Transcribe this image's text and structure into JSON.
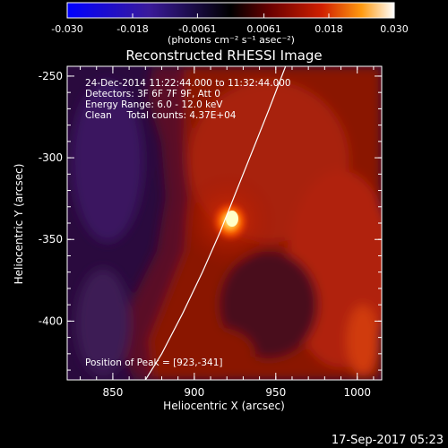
{
  "colorbar": {
    "tick_labels": [
      "-0.030",
      "-0.018",
      "-0.0061",
      "0.0061",
      "0.018",
      "0.030"
    ],
    "tick_values": [
      -0.03,
      -0.018,
      -0.0061,
      0.0061,
      0.018,
      0.03
    ],
    "range": [
      -0.03,
      0.03
    ],
    "units_label": "(photons cm⁻² s⁻¹ asec⁻²)"
  },
  "plot": {
    "title": "Reconstructed RHESSI Image",
    "xlabel": "Heliocentric X (arcsec)",
    "ylabel": "Heliocentric Y (arcsec)",
    "x_ticks": [
      "850",
      "900",
      "950",
      "1000"
    ],
    "x_tick_values": [
      850,
      900,
      950,
      1000
    ],
    "y_ticks": [
      "-250",
      "-300",
      "-350",
      "-400"
    ],
    "y_tick_values": [
      -250,
      -300,
      -350,
      -400
    ],
    "xlim": [
      822,
      1015
    ],
    "ylim": [
      -436,
      -244
    ]
  },
  "annotations": {
    "line1": "24-Dec-2014 11:22:44.000 to 11:32:44.000",
    "line2": "Detectors: 3F 6F 7F 9F, Att 0",
    "line3": "Energy Range: 6.0 - 12.0 keV",
    "line4": "Clean     Total counts: 4.37E+04",
    "peak": "Position of Peak = [923,-341]"
  },
  "footer": {
    "timestamp": "17-Sep-2017 05:23"
  },
  "chart_data": {
    "type": "heatmap",
    "title": "Reconstructed RHESSI Image",
    "xlabel": "Heliocentric X (arcsec)",
    "ylabel": "Heliocentric Y (arcsec)",
    "xlim": [
      822,
      1015
    ],
    "ylim": [
      -436,
      -244
    ],
    "colorscale_range": [
      -0.03,
      0.03
    ],
    "peak": {
      "x": 923,
      "y": -341
    },
    "limb_curve": [
      [
        870,
        -436
      ],
      [
        880,
        -420
      ],
      [
        893,
        -395
      ],
      [
        905,
        -370
      ],
      [
        916,
        -345
      ],
      [
        926,
        -320
      ],
      [
        936,
        -295
      ],
      [
        946,
        -270
      ],
      [
        956,
        -244
      ]
    ]
  },
  "colors": {
    "background": "#000000",
    "axes": "#ffffff",
    "low": "#2a0a4a",
    "mid": "#7a0f00",
    "high": "#ffffa0"
  }
}
